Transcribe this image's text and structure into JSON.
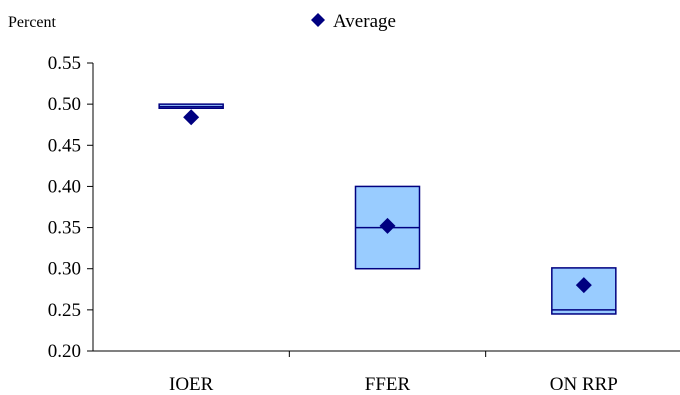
{
  "chart_data": {
    "type": "box",
    "y_unit_label": "Percent",
    "legend": {
      "entries": [
        "Average"
      ],
      "placement": "top-center"
    },
    "ylim": [
      0.2,
      0.55
    ],
    "yticks": [
      "0.20",
      "0.25",
      "0.30",
      "0.35",
      "0.40",
      "0.45",
      "0.50",
      "0.55"
    ],
    "categories": [
      "IOER",
      "FFER",
      "ON RRP"
    ],
    "series": [
      {
        "category": "IOER",
        "low": 0.495,
        "high": 0.5,
        "median": 0.497,
        "average": 0.484
      },
      {
        "category": "FFER",
        "low": 0.3,
        "high": 0.4,
        "median": 0.35,
        "average": 0.352
      },
      {
        "category": "ON RRP",
        "low": 0.245,
        "high": 0.301,
        "median": 0.25,
        "average": 0.28
      }
    ],
    "grid": false,
    "colors": {
      "box_fill": "#99CCFF",
      "box_stroke": "#000080",
      "marker": "#000080",
      "axis": "#000000"
    }
  }
}
